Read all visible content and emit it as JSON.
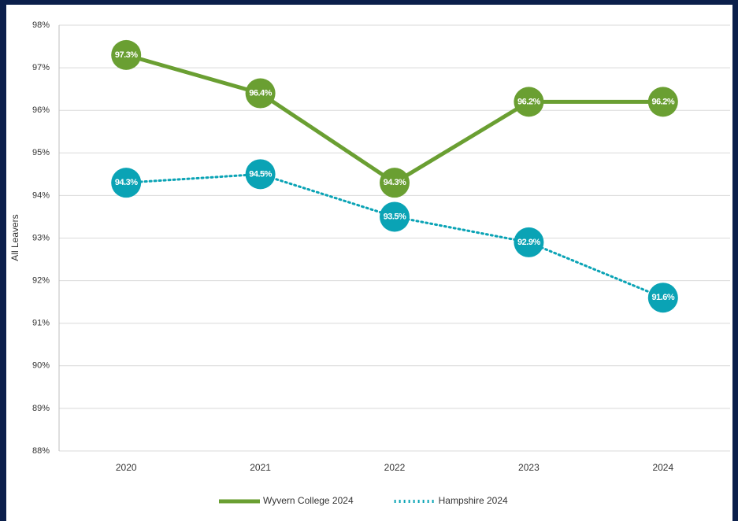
{
  "chart_data": {
    "type": "line",
    "y_label": "All Leavers",
    "categories": [
      "2020",
      "2021",
      "2022",
      "2023",
      "2024"
    ],
    "series": [
      {
        "name": "Wyvern College 2024",
        "color": "#6a9f32",
        "style": "solid",
        "values": [
          97.3,
          96.4,
          94.3,
          96.2,
          96.2
        ],
        "value_labels": [
          "97.3%",
          "96.4%",
          "94.3%",
          "96.2%",
          "96.2%"
        ]
      },
      {
        "name": "Hampshire 2024",
        "color": "#0aa3b5",
        "style": "dotted",
        "values": [
          94.3,
          94.5,
          93.5,
          92.9,
          91.6
        ],
        "value_labels": [
          "94.3%",
          "94.5%",
          "93.5%",
          "92.9%",
          "91.6%"
        ]
      }
    ],
    "ylim": [
      88,
      98
    ],
    "yticks": [
      {
        "value": 88,
        "label": "88%"
      },
      {
        "value": 89,
        "label": "89%"
      },
      {
        "value": 90,
        "label": "90%"
      },
      {
        "value": 91,
        "label": "91%"
      },
      {
        "value": 92,
        "label": "92%"
      },
      {
        "value": 93,
        "label": "93%"
      },
      {
        "value": 94,
        "label": "94%"
      },
      {
        "value": 95,
        "label": "95%"
      },
      {
        "value": 96,
        "label": "96%"
      },
      {
        "value": 97,
        "label": "97%"
      },
      {
        "value": 98,
        "label": "98%"
      }
    ],
    "grid": true,
    "legend": "bottom"
  }
}
